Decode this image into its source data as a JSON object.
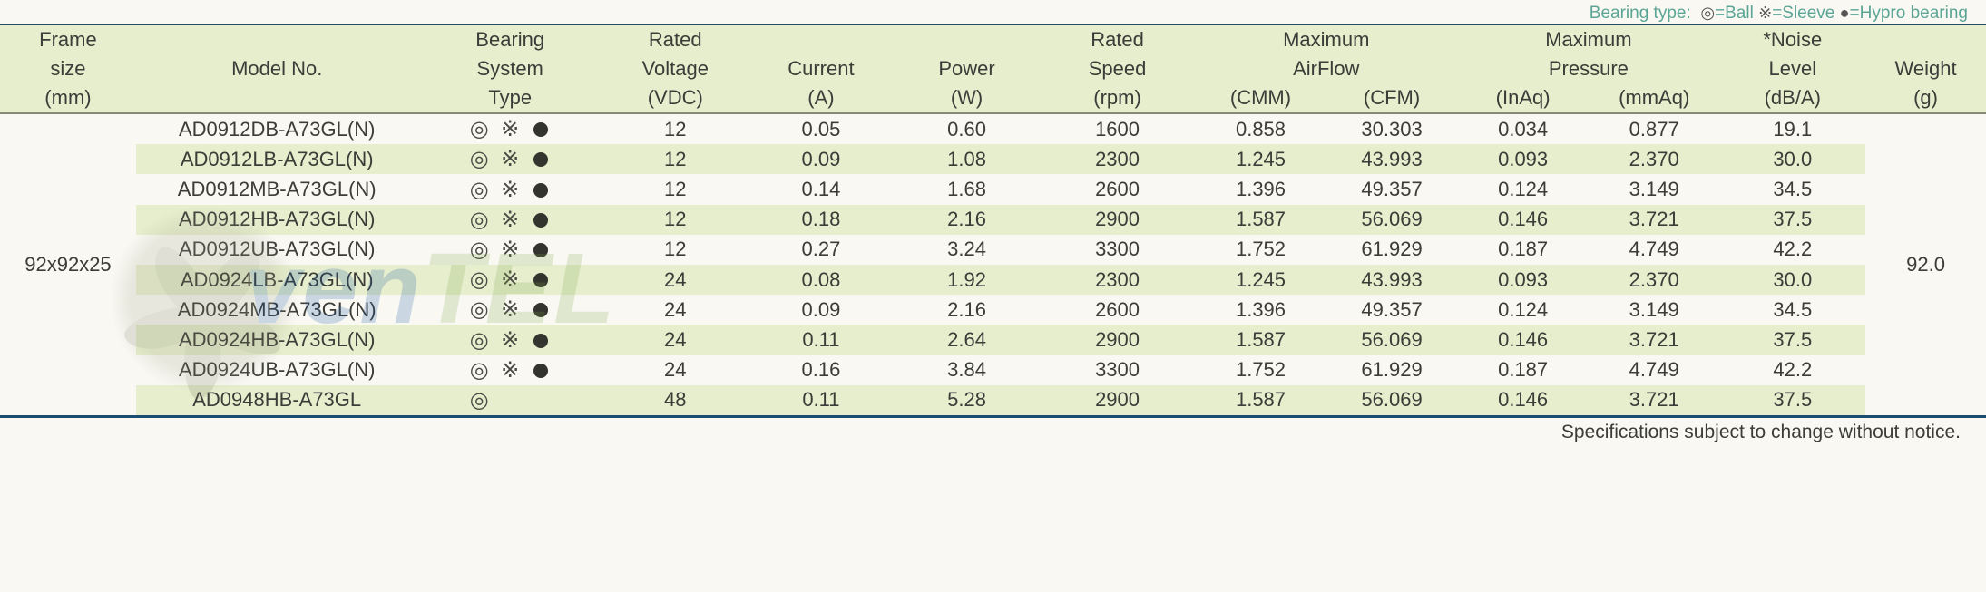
{
  "legend": {
    "label": "Bearing type:",
    "ball_sym": "◎",
    "ball_text": "=Ball",
    "sleeve_sym": "※",
    "sleeve_text": "=Sleeve",
    "hypro_sym": "●",
    "hypro_text": "=Hypro bearing"
  },
  "headers": {
    "frame_l1": "Frame",
    "frame_l2": "size",
    "frame_l3": "(mm)",
    "model": "Model No.",
    "bearing_l1": "Bearing",
    "bearing_l2": "System",
    "bearing_l3": "Type",
    "voltage_l1": "Rated",
    "voltage_l2": "Voltage",
    "voltage_l3": "(VDC)",
    "current_l1": "Current",
    "current_l2": "(A)",
    "power_l1": "Power",
    "power_l2": "(W)",
    "speed_l1": "Rated",
    "speed_l2": "Speed",
    "speed_l3": "(rpm)",
    "airflow_l1": "Maximum",
    "airflow_l2": "AirFlow",
    "airflow_cmm": "(CMM)",
    "airflow_cfm": "(CFM)",
    "pressure_l1": "Maximum",
    "pressure_l2": "Pressure",
    "pressure_inaq": "(InAq)",
    "pressure_mmaq": "(mmAq)",
    "noise_l1": "*Noise",
    "noise_l2": "Level",
    "noise_l3": "(dB/A)",
    "weight_l1": "Weight",
    "weight_l2": "(g)"
  },
  "frame_size": "92x92x25",
  "weight": "92.0",
  "bearings": {
    "ball": "◎",
    "sleeve": "※"
  },
  "rows": [
    {
      "model": "AD0912DB-A73GL(N)",
      "ball": true,
      "sleeve": true,
      "hypro": true,
      "vdc": "12",
      "a": "0.05",
      "w": "0.60",
      "rpm": "1600",
      "cmm": "0.858",
      "cfm": "30.303",
      "inaq": "0.034",
      "mmaq": "0.877",
      "db": "19.1"
    },
    {
      "model": "AD0912LB-A73GL(N)",
      "ball": true,
      "sleeve": true,
      "hypro": true,
      "vdc": "12",
      "a": "0.09",
      "w": "1.08",
      "rpm": "2300",
      "cmm": "1.245",
      "cfm": "43.993",
      "inaq": "0.093",
      "mmaq": "2.370",
      "db": "30.0"
    },
    {
      "model": "AD0912MB-A73GL(N)",
      "ball": true,
      "sleeve": true,
      "hypro": true,
      "vdc": "12",
      "a": "0.14",
      "w": "1.68",
      "rpm": "2600",
      "cmm": "1.396",
      "cfm": "49.357",
      "inaq": "0.124",
      "mmaq": "3.149",
      "db": "34.5"
    },
    {
      "model": "AD0912HB-A73GL(N)",
      "ball": true,
      "sleeve": true,
      "hypro": true,
      "vdc": "12",
      "a": "0.18",
      "w": "2.16",
      "rpm": "2900",
      "cmm": "1.587",
      "cfm": "56.069",
      "inaq": "0.146",
      "mmaq": "3.721",
      "db": "37.5"
    },
    {
      "model": "AD0912UB-A73GL(N)",
      "ball": true,
      "sleeve": true,
      "hypro": true,
      "vdc": "12",
      "a": "0.27",
      "w": "3.24",
      "rpm": "3300",
      "cmm": "1.752",
      "cfm": "61.929",
      "inaq": "0.187",
      "mmaq": "4.749",
      "db": "42.2"
    },
    {
      "model": "AD0924LB-A73GL(N)",
      "ball": true,
      "sleeve": true,
      "hypro": true,
      "vdc": "24",
      "a": "0.08",
      "w": "1.92",
      "rpm": "2300",
      "cmm": "1.245",
      "cfm": "43.993",
      "inaq": "0.093",
      "mmaq": "2.370",
      "db": "30.0"
    },
    {
      "model": "AD0924MB-A73GL(N)",
      "ball": true,
      "sleeve": true,
      "hypro": true,
      "vdc": "24",
      "a": "0.09",
      "w": "2.16",
      "rpm": "2600",
      "cmm": "1.396",
      "cfm": "49.357",
      "inaq": "0.124",
      "mmaq": "3.149",
      "db": "34.5"
    },
    {
      "model": "AD0924HB-A73GL(N)",
      "ball": true,
      "sleeve": true,
      "hypro": true,
      "vdc": "24",
      "a": "0.11",
      "w": "2.64",
      "rpm": "2900",
      "cmm": "1.587",
      "cfm": "56.069",
      "inaq": "0.146",
      "mmaq": "3.721",
      "db": "37.5"
    },
    {
      "model": "AD0924UB-A73GL(N)",
      "ball": true,
      "sleeve": true,
      "hypro": true,
      "vdc": "24",
      "a": "0.16",
      "w": "3.84",
      "rpm": "3300",
      "cmm": "1.752",
      "cfm": "61.929",
      "inaq": "0.187",
      "mmaq": "4.749",
      "db": "42.2"
    },
    {
      "model": "AD0948HB-A73GL",
      "ball": true,
      "sleeve": false,
      "hypro": false,
      "vdc": "48",
      "a": "0.11",
      "w": "5.28",
      "rpm": "2900",
      "cmm": "1.587",
      "cfm": "56.069",
      "inaq": "0.146",
      "mmaq": "3.721",
      "db": "37.5"
    }
  ],
  "footer": "Specifications subject to change without notice.",
  "colors": {
    "header_bg": "#e6eece",
    "row_even_bg": "#e6eece",
    "row_odd_bg": "#f9f8f3",
    "rule": "#1a4d6f",
    "text": "#3c3c38",
    "legend_text": "#5ba596"
  }
}
